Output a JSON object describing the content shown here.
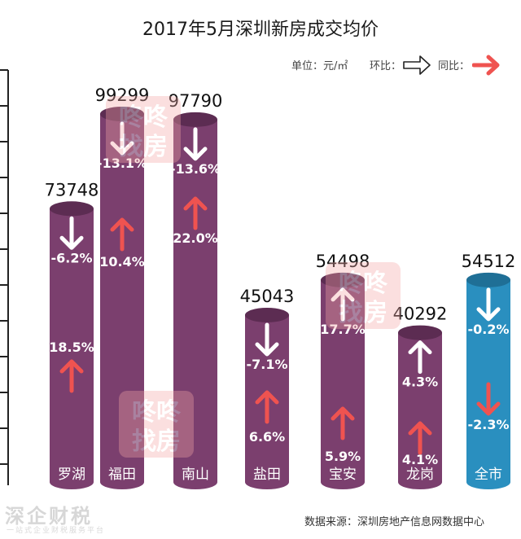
{
  "chart_data": {
    "type": "bar",
    "title": "2017年5月深圳新房成交均价",
    "unit_label": "单位：元/㎡",
    "legend": {
      "mom_label": "环比：",
      "yoy_label": "同比："
    },
    "categories": [
      "罗湖",
      "福田",
      "南山",
      "盐田",
      "宝安",
      "龙岗",
      "全市"
    ],
    "values": [
      73748,
      99299,
      97790,
      45043,
      54498,
      40292,
      54512
    ],
    "value_labels": [
      "73748",
      "99299",
      "97790",
      "45043",
      "54498",
      "40292",
      "54512"
    ],
    "mom_change": [
      "-6.2%",
      "-13.1%",
      "-13.6%",
      "-7.1%",
      "17.7%",
      "4.3%",
      "-0.2%"
    ],
    "yoy_change": [
      "18.5%",
      "10.4%",
      "22.0%",
      "6.6%",
      "5.9%",
      "4.1%",
      "-2.3%"
    ],
    "mom_direction": [
      "down",
      "down",
      "down",
      "down",
      "up",
      "up",
      "down"
    ],
    "yoy_direction": [
      "up",
      "up",
      "up",
      "up",
      "up",
      "up",
      "down"
    ],
    "highlight_category": "全市",
    "ylim": [
      0,
      110000
    ],
    "colors": {
      "bar": "#7b3f6e",
      "bar_top": "#5c2c52",
      "total_bar": "#2a8fbf",
      "total_top": "#1f6f96",
      "mom_arrow": "#ffffff",
      "yoy_arrow": "#ef5350",
      "axis": "#222222"
    }
  },
  "source": "数据来源：深圳房地产信息网数据中心",
  "watermark": {
    "main": "深企财税",
    "sub": "一站式企业财税服务平台",
    "logo_text": "咚咚找房"
  }
}
